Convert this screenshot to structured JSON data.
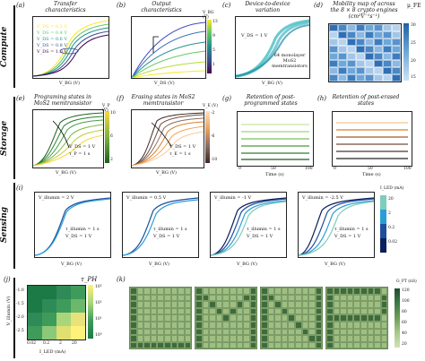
{
  "rows": {
    "compute": "Compute",
    "storage": "Storage",
    "sensing": "Sensing"
  },
  "panels": {
    "a": {
      "label": "(a)",
      "title": "Transfer characteristics",
      "xlabel": "V_BG (V)",
      "ylabel": "I_DS (A/μm)",
      "legend": [
        "V_DS = 0.2 V",
        "V_DS = 0.4 V",
        "V_DS = 0.6 V",
        "V_DS = 0.8 V",
        "V_DS = 1.0 V"
      ]
    },
    "b": {
      "label": "(b)",
      "title": "Output characteristics",
      "xlabel": "V_DS (V)",
      "ylabel": "I_DS (μA/μm)",
      "cbar_title": "V_BG (V)",
      "cbar_ticks": [
        "13",
        "9",
        "5",
        "1"
      ]
    },
    "c": {
      "label": "(c)",
      "title": "Device-to-device variation",
      "note": "V_DS = 1 V",
      "note2": "64 monolayer MoS2 memtransistors",
      "xlabel": "V_BG (V)",
      "ylabel": "I_DS (A/μm)"
    },
    "d": {
      "label": "(d)",
      "title": "Mobility map of across the 8 × 8 crypto engines (cm²V⁻¹s⁻¹)",
      "cbar_title": "μ_FE",
      "cbar_ticks": [
        "30",
        "25",
        "20",
        "15"
      ]
    },
    "e": {
      "label": "(e)",
      "title": "Programing states in MoS2 memtransistor",
      "note": "V_DS = 1 V",
      "note2": "τ_P = 1 s",
      "xlabel": "V_BG (V)",
      "ylabel": "I_DS (A/μm)",
      "cbar_title": "V_P (V)",
      "cbar_ticks": [
        "10",
        "8",
        "6",
        "4",
        "2"
      ]
    },
    "f": {
      "label": "(f)",
      "title": "Erasing states in MoS2 memtransistor",
      "note": "V_DS = 1 V",
      "note2": "τ_E = 1 s",
      "xlabel": "V_BG (V)",
      "ylabel": "I_DS (A/μm)",
      "cbar_title": "V_E (V)",
      "cbar_ticks": [
        "-2",
        "-4",
        "-6",
        "-8",
        "-10"
      ]
    },
    "g": {
      "label": "(g)",
      "title": "Retention of post-programmed states",
      "xlabel": "Time (s)",
      "ylabel": "G_P (nS)",
      "xticks": [
        "0",
        "25",
        "50",
        "75",
        "100"
      ]
    },
    "h": {
      "label": "(h)",
      "title": "Retention of post-erased states",
      "xlabel": "Time (s)",
      "ylabel": "G_E (nS)",
      "xticks": [
        "0",
        "25",
        "50",
        "75",
        "100"
      ]
    },
    "i": {
      "label": "(i)",
      "xlabel": "V_BG (V)",
      "ylabel": "I_DS (A/μm)",
      "cbar_title": "I_LED (mA)",
      "cbar_ticks": [
        "20",
        "2",
        "0.2",
        "0.02"
      ],
      "subplots": [
        {
          "v": "V_illumin = 2 V",
          "t": "τ_illumin = 1 s",
          "d": "V_DS = 1 V"
        },
        {
          "v": "V_illumin = 0.5 V",
          "t": "τ_illumin = 1 s",
          "d": "V_DS = 1 V"
        },
        {
          "v": "V_illumin = -1 V",
          "t": "τ_illumin = 1 s",
          "d": "V_DS = 1 V"
        },
        {
          "v": "V_illumin = -2.5 V",
          "t": "τ_illumin = 1 s",
          "d": "V_DS = 1 V"
        }
      ]
    },
    "j": {
      "label": "(j)",
      "title": "τ_PH",
      "ylabel": "V_illumin (V)",
      "xlabel": "I_LED (mA)",
      "xticks": [
        "0.02",
        "0.2",
        "2",
        "20"
      ],
      "yticks": [
        "-1.0",
        "-1.5",
        "-2.0",
        "-2.5"
      ],
      "cbar_ticks": [
        "10³",
        "10²",
        "10¹",
        "10⁰"
      ]
    },
    "k": {
      "label": "(k)",
      "cbar_title": "G_PT (nS)",
      "cbar_ticks": [
        "120",
        "100",
        "80",
        "60",
        "40",
        "20"
      ],
      "letters": [
        "L",
        "M",
        "N",
        "P"
      ]
    }
  },
  "colors": {
    "viridis": [
      "#440154",
      "#3b528b",
      "#21918c",
      "#5ec962",
      "#fde725"
    ],
    "cyan_blue": [
      "#1f78b4",
      "#2a9fd6",
      "#41b6c4",
      "#7fcdbb"
    ],
    "greens_dark": "#1b5e20",
    "green_light": "#c7e9c0",
    "heat_blue": "#4a90c8",
    "heat_light": "#cfe3f3"
  }
}
